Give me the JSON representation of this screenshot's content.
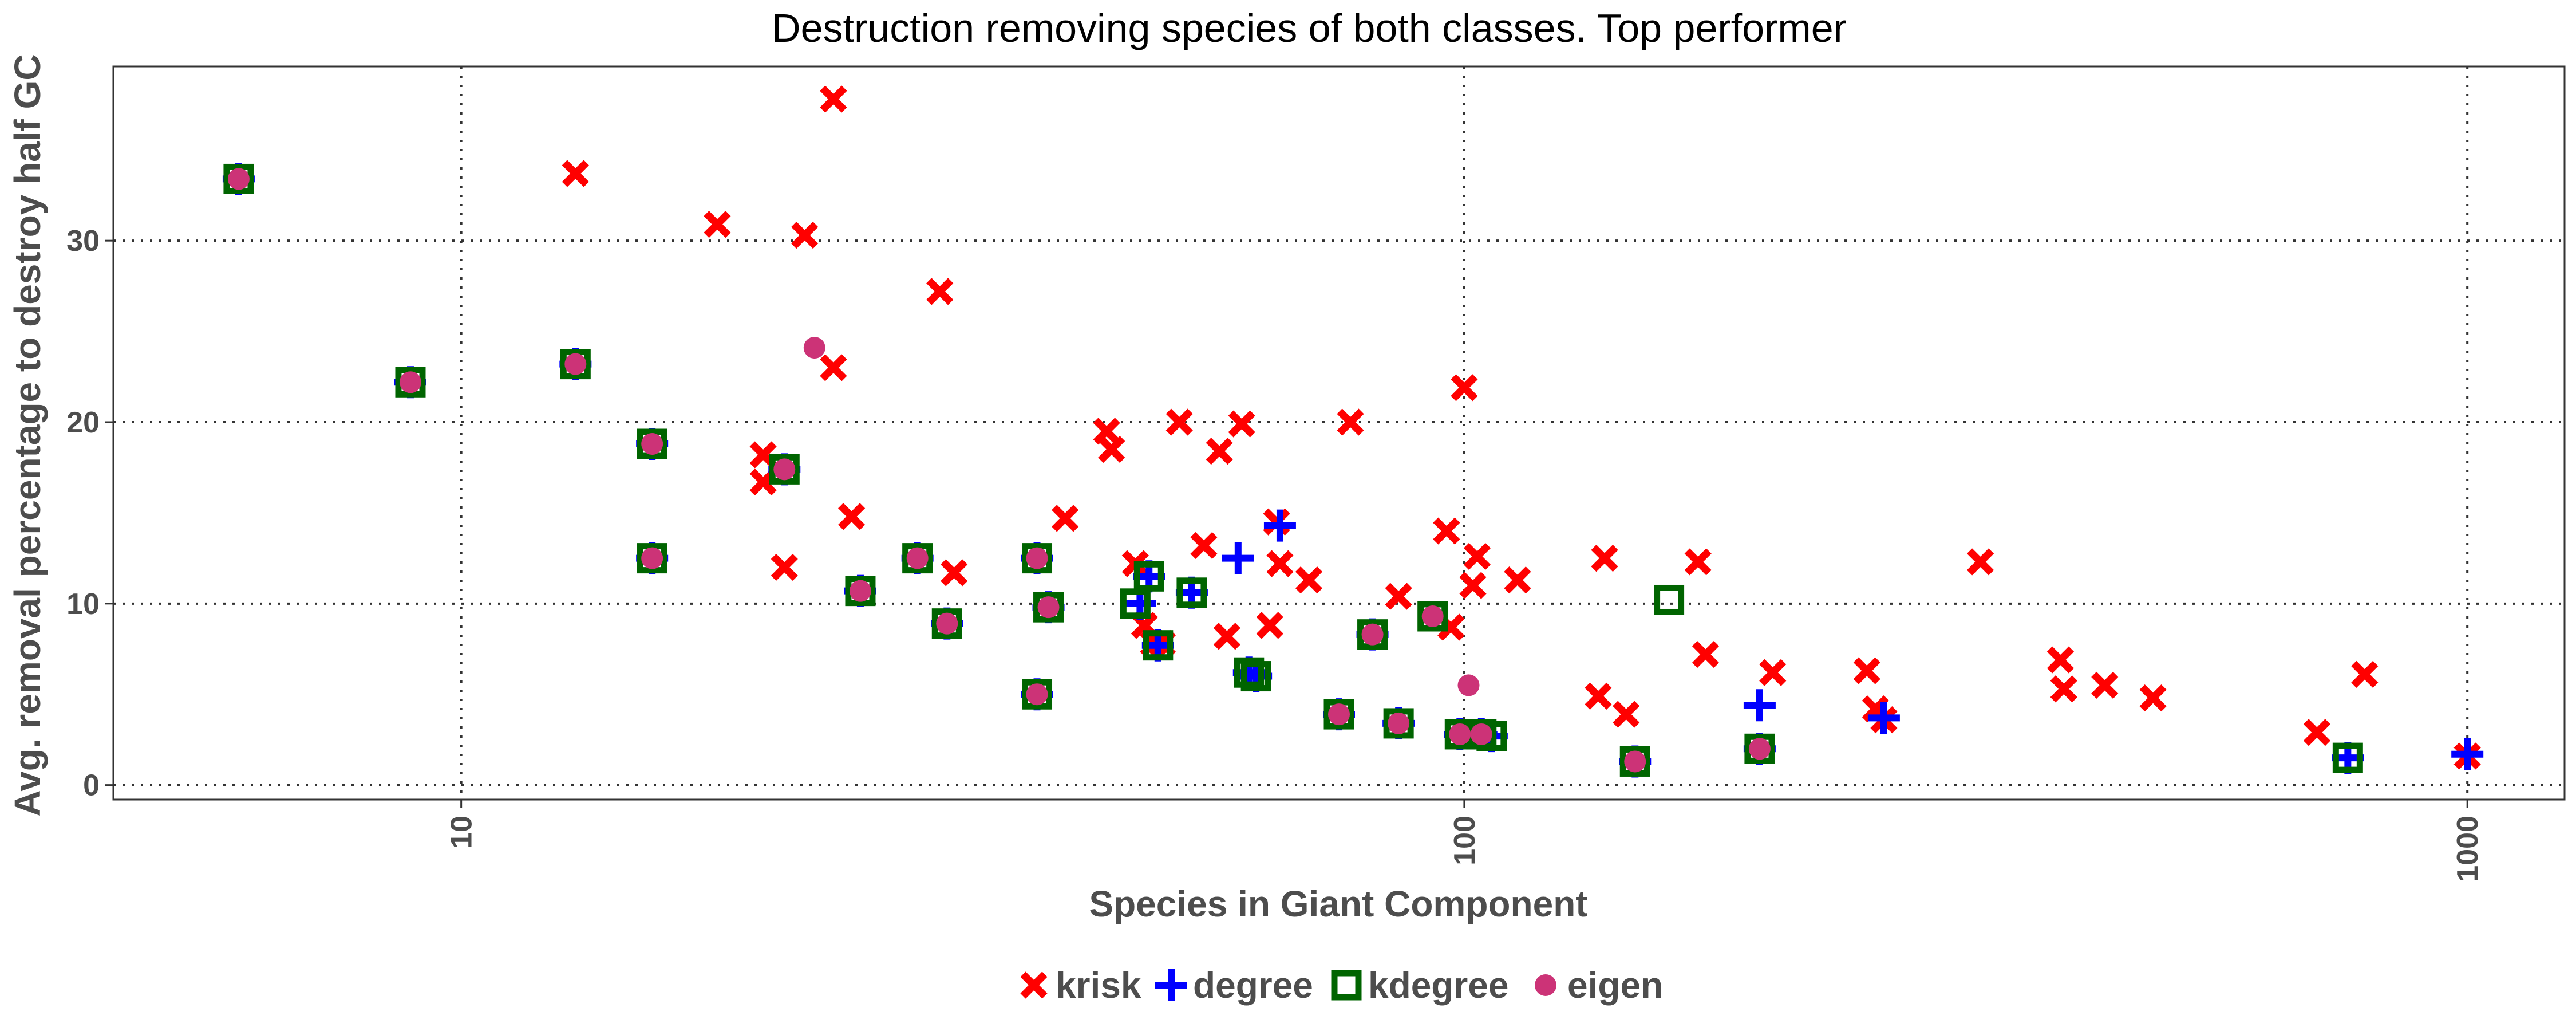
{
  "chart_data": {
    "type": "scatter",
    "title": "Destruction removing species of both classes. Top performer",
    "xlabel": "Species in Giant Component",
    "ylabel": "Avg. removal percentage to destroy half GC",
    "x_scale": "log10",
    "xlim": [
      4.5,
      1250
    ],
    "ylim": [
      -0.8,
      39.6
    ],
    "x_ticks": [
      10,
      100,
      1000
    ],
    "x_tick_labels": [
      "10",
      "100",
      "1000"
    ],
    "y_ticks": [
      0,
      10,
      20,
      30
    ],
    "y_tick_labels": [
      "0",
      "10",
      "20",
      "30"
    ],
    "grid": true,
    "legend_position": "bottom",
    "colors": {
      "krisk": "#ff0000",
      "degree": "#0000ff",
      "kdegree": "#006400",
      "eigen": "#cc3377"
    },
    "series": [
      {
        "name": "krisk",
        "marker": "x",
        "points": [
          [
            13,
            33.7
          ],
          [
            23.5,
            37.8
          ],
          [
            18,
            30.9
          ],
          [
            22,
            30.3
          ],
          [
            30,
            27.2
          ],
          [
            23.5,
            23.0
          ],
          [
            20,
            18.2
          ],
          [
            20,
            16.7
          ],
          [
            24.5,
            14.8
          ],
          [
            21,
            12.0
          ],
          [
            31,
            11.7
          ],
          [
            40,
            14.7
          ],
          [
            44,
            19.5
          ],
          [
            44.5,
            18.5
          ],
          [
            47,
            12.2
          ],
          [
            48,
            8.8
          ],
          [
            49,
            7.8
          ],
          [
            50,
            7.8
          ],
          [
            52,
            20.0
          ],
          [
            55,
            13.2
          ],
          [
            57,
            18.4
          ],
          [
            58,
            8.2
          ],
          [
            60,
            19.9
          ],
          [
            64,
            8.8
          ],
          [
            65,
            14.5
          ],
          [
            65.5,
            12.2
          ],
          [
            70,
            11.3
          ],
          [
            77,
            20.0
          ],
          [
            86,
            10.4
          ],
          [
            96,
            14.0
          ],
          [
            97,
            8.7
          ],
          [
            100,
            21.9
          ],
          [
            102,
            11.0
          ],
          [
            103,
            12.6
          ],
          [
            113,
            11.3
          ],
          [
            138,
            12.5
          ],
          [
            136,
            4.9
          ],
          [
            145,
            3.9
          ],
          [
            171,
            12.3
          ],
          [
            174,
            7.2
          ],
          [
            203,
            6.2
          ],
          [
            252,
            6.3
          ],
          [
            257,
            4.2
          ],
          [
            262,
            3.6
          ],
          [
            327,
            12.3
          ],
          [
            393,
            6.9
          ],
          [
            396,
            5.3
          ],
          [
            435,
            5.5
          ],
          [
            486,
            4.8
          ],
          [
            708,
            2.9
          ],
          [
            790,
            6.1
          ],
          [
            1000,
            1.6
          ]
        ]
      },
      {
        "name": "degree",
        "marker": "plus",
        "points": [
          [
            6,
            33.4
          ],
          [
            8.9,
            22.2
          ],
          [
            13,
            23.2
          ],
          [
            15.5,
            18.8
          ],
          [
            15.5,
            12.5
          ],
          [
            21,
            17.4
          ],
          [
            25,
            10.7
          ],
          [
            28.5,
            12.5
          ],
          [
            30.5,
            8.9
          ],
          [
            37.5,
            12.5
          ],
          [
            38.5,
            9.8
          ],
          [
            37.5,
            5.0
          ],
          [
            47.5,
            10.0
          ],
          [
            48.5,
            11.5
          ],
          [
            49.5,
            7.7
          ],
          [
            53.5,
            10.6
          ],
          [
            59.5,
            12.5
          ],
          [
            61,
            6.2
          ],
          [
            62,
            6.0
          ],
          [
            65.5,
            14.3
          ],
          [
            75,
            3.9
          ],
          [
            81,
            8.3
          ],
          [
            86,
            3.4
          ],
          [
            99,
            2.8
          ],
          [
            104,
            2.8
          ],
          [
            106.5,
            2.7
          ],
          [
            148,
            1.3
          ],
          [
            197,
            4.4
          ],
          [
            197,
            2.0
          ],
          [
            262,
            3.7
          ],
          [
            760,
            1.5
          ],
          [
            1000,
            1.7
          ]
        ]
      },
      {
        "name": "kdegree",
        "marker": "square",
        "points": [
          [
            6,
            33.4
          ],
          [
            8.9,
            22.2
          ],
          [
            13,
            23.2
          ],
          [
            15.5,
            18.8
          ],
          [
            15.5,
            12.5
          ],
          [
            21,
            17.4
          ],
          [
            25,
            10.7
          ],
          [
            28.5,
            12.5
          ],
          [
            30.5,
            8.9
          ],
          [
            37.5,
            12.5
          ],
          [
            38.5,
            9.8
          ],
          [
            37.5,
            5.0
          ],
          [
            47,
            10.0
          ],
          [
            48.5,
            11.5
          ],
          [
            49.5,
            7.7
          ],
          [
            53.5,
            10.6
          ],
          [
            61,
            6.2
          ],
          [
            62,
            6.0
          ],
          [
            75,
            3.9
          ],
          [
            81,
            8.3
          ],
          [
            86,
            3.4
          ],
          [
            93,
            9.3
          ],
          [
            99,
            2.8
          ],
          [
            104,
            2.8
          ],
          [
            106.5,
            2.7
          ],
          [
            148,
            1.3
          ],
          [
            160,
            10.2
          ],
          [
            197,
            2.0
          ],
          [
            760,
            1.5
          ]
        ]
      },
      {
        "name": "eigen",
        "marker": "circle",
        "points": [
          [
            6,
            33.4
          ],
          [
            8.9,
            22.2
          ],
          [
            13,
            23.2
          ],
          [
            15.5,
            18.8
          ],
          [
            15.5,
            12.5
          ],
          [
            21,
            17.4
          ],
          [
            22.5,
            24.1
          ],
          [
            25,
            10.7
          ],
          [
            28.5,
            12.5
          ],
          [
            30.5,
            8.9
          ],
          [
            37.5,
            12.5
          ],
          [
            38.5,
            9.8
          ],
          [
            37.5,
            5.0
          ],
          [
            75,
            3.9
          ],
          [
            81,
            8.3
          ],
          [
            86,
            3.4
          ],
          [
            93,
            9.3
          ],
          [
            99,
            2.8
          ],
          [
            101,
            5.5
          ],
          [
            104,
            2.8
          ],
          [
            148,
            1.3
          ],
          [
            197,
            2.0
          ]
        ]
      }
    ]
  }
}
